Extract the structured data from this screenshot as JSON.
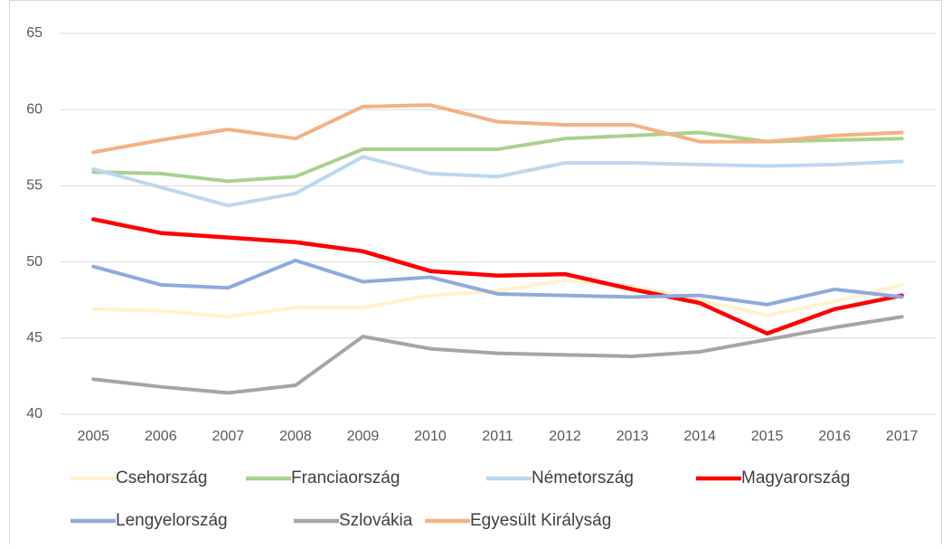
{
  "chart_data": {
    "type": "line",
    "categories": [
      "2005",
      "2006",
      "2007",
      "2008",
      "2009",
      "2010",
      "2011",
      "2012",
      "2013",
      "2014",
      "2015",
      "2016",
      "2017"
    ],
    "ylim": [
      40,
      65
    ],
    "yticks": [
      40,
      45,
      50,
      55,
      60,
      65
    ],
    "grid": true,
    "legend": "bottom",
    "series": [
      {
        "name": "Csehország",
        "color": "#fff2cc",
        "values": [
          46.9,
          46.8,
          46.4,
          47.0,
          47.0,
          47.8,
          48.1,
          48.8,
          48.4,
          47.5,
          46.5,
          47.4,
          48.5
        ]
      },
      {
        "name": "Franciaország",
        "color": "#a9d18e",
        "values": [
          55.9,
          55.8,
          55.3,
          55.6,
          57.4,
          57.4,
          57.4,
          58.1,
          58.3,
          58.5,
          57.9,
          58.0,
          58.1
        ]
      },
      {
        "name": "Németország",
        "color": "#bdd7ee",
        "values": [
          56.1,
          54.9,
          53.7,
          54.5,
          56.9,
          55.8,
          55.6,
          56.5,
          56.5,
          56.4,
          56.3,
          56.4,
          56.6
        ]
      },
      {
        "name": "Magyarország",
        "color": "#ff0000",
        "values": [
          52.8,
          51.9,
          51.6,
          51.3,
          50.7,
          49.4,
          49.1,
          49.2,
          48.2,
          47.3,
          45.3,
          46.9,
          47.8
        ]
      },
      {
        "name": "Lengyelország",
        "color": "#8faadc",
        "values": [
          49.7,
          48.5,
          48.3,
          50.1,
          48.7,
          49.0,
          47.9,
          47.8,
          47.7,
          47.8,
          47.2,
          48.2,
          47.7
        ]
      },
      {
        "name": "Szlovákia",
        "color": "#a5a5a5",
        "values": [
          42.3,
          41.8,
          41.4,
          41.9,
          45.1,
          44.3,
          44.0,
          43.9,
          43.8,
          44.1,
          44.9,
          45.7,
          46.4
        ]
      },
      {
        "name": "Egyesült Királyság",
        "color": "#f4b183",
        "values": [
          57.2,
          58.0,
          58.7,
          58.1,
          60.2,
          60.3,
          59.2,
          59.0,
          59.0,
          57.9,
          57.9,
          58.3,
          58.5
        ]
      }
    ]
  }
}
